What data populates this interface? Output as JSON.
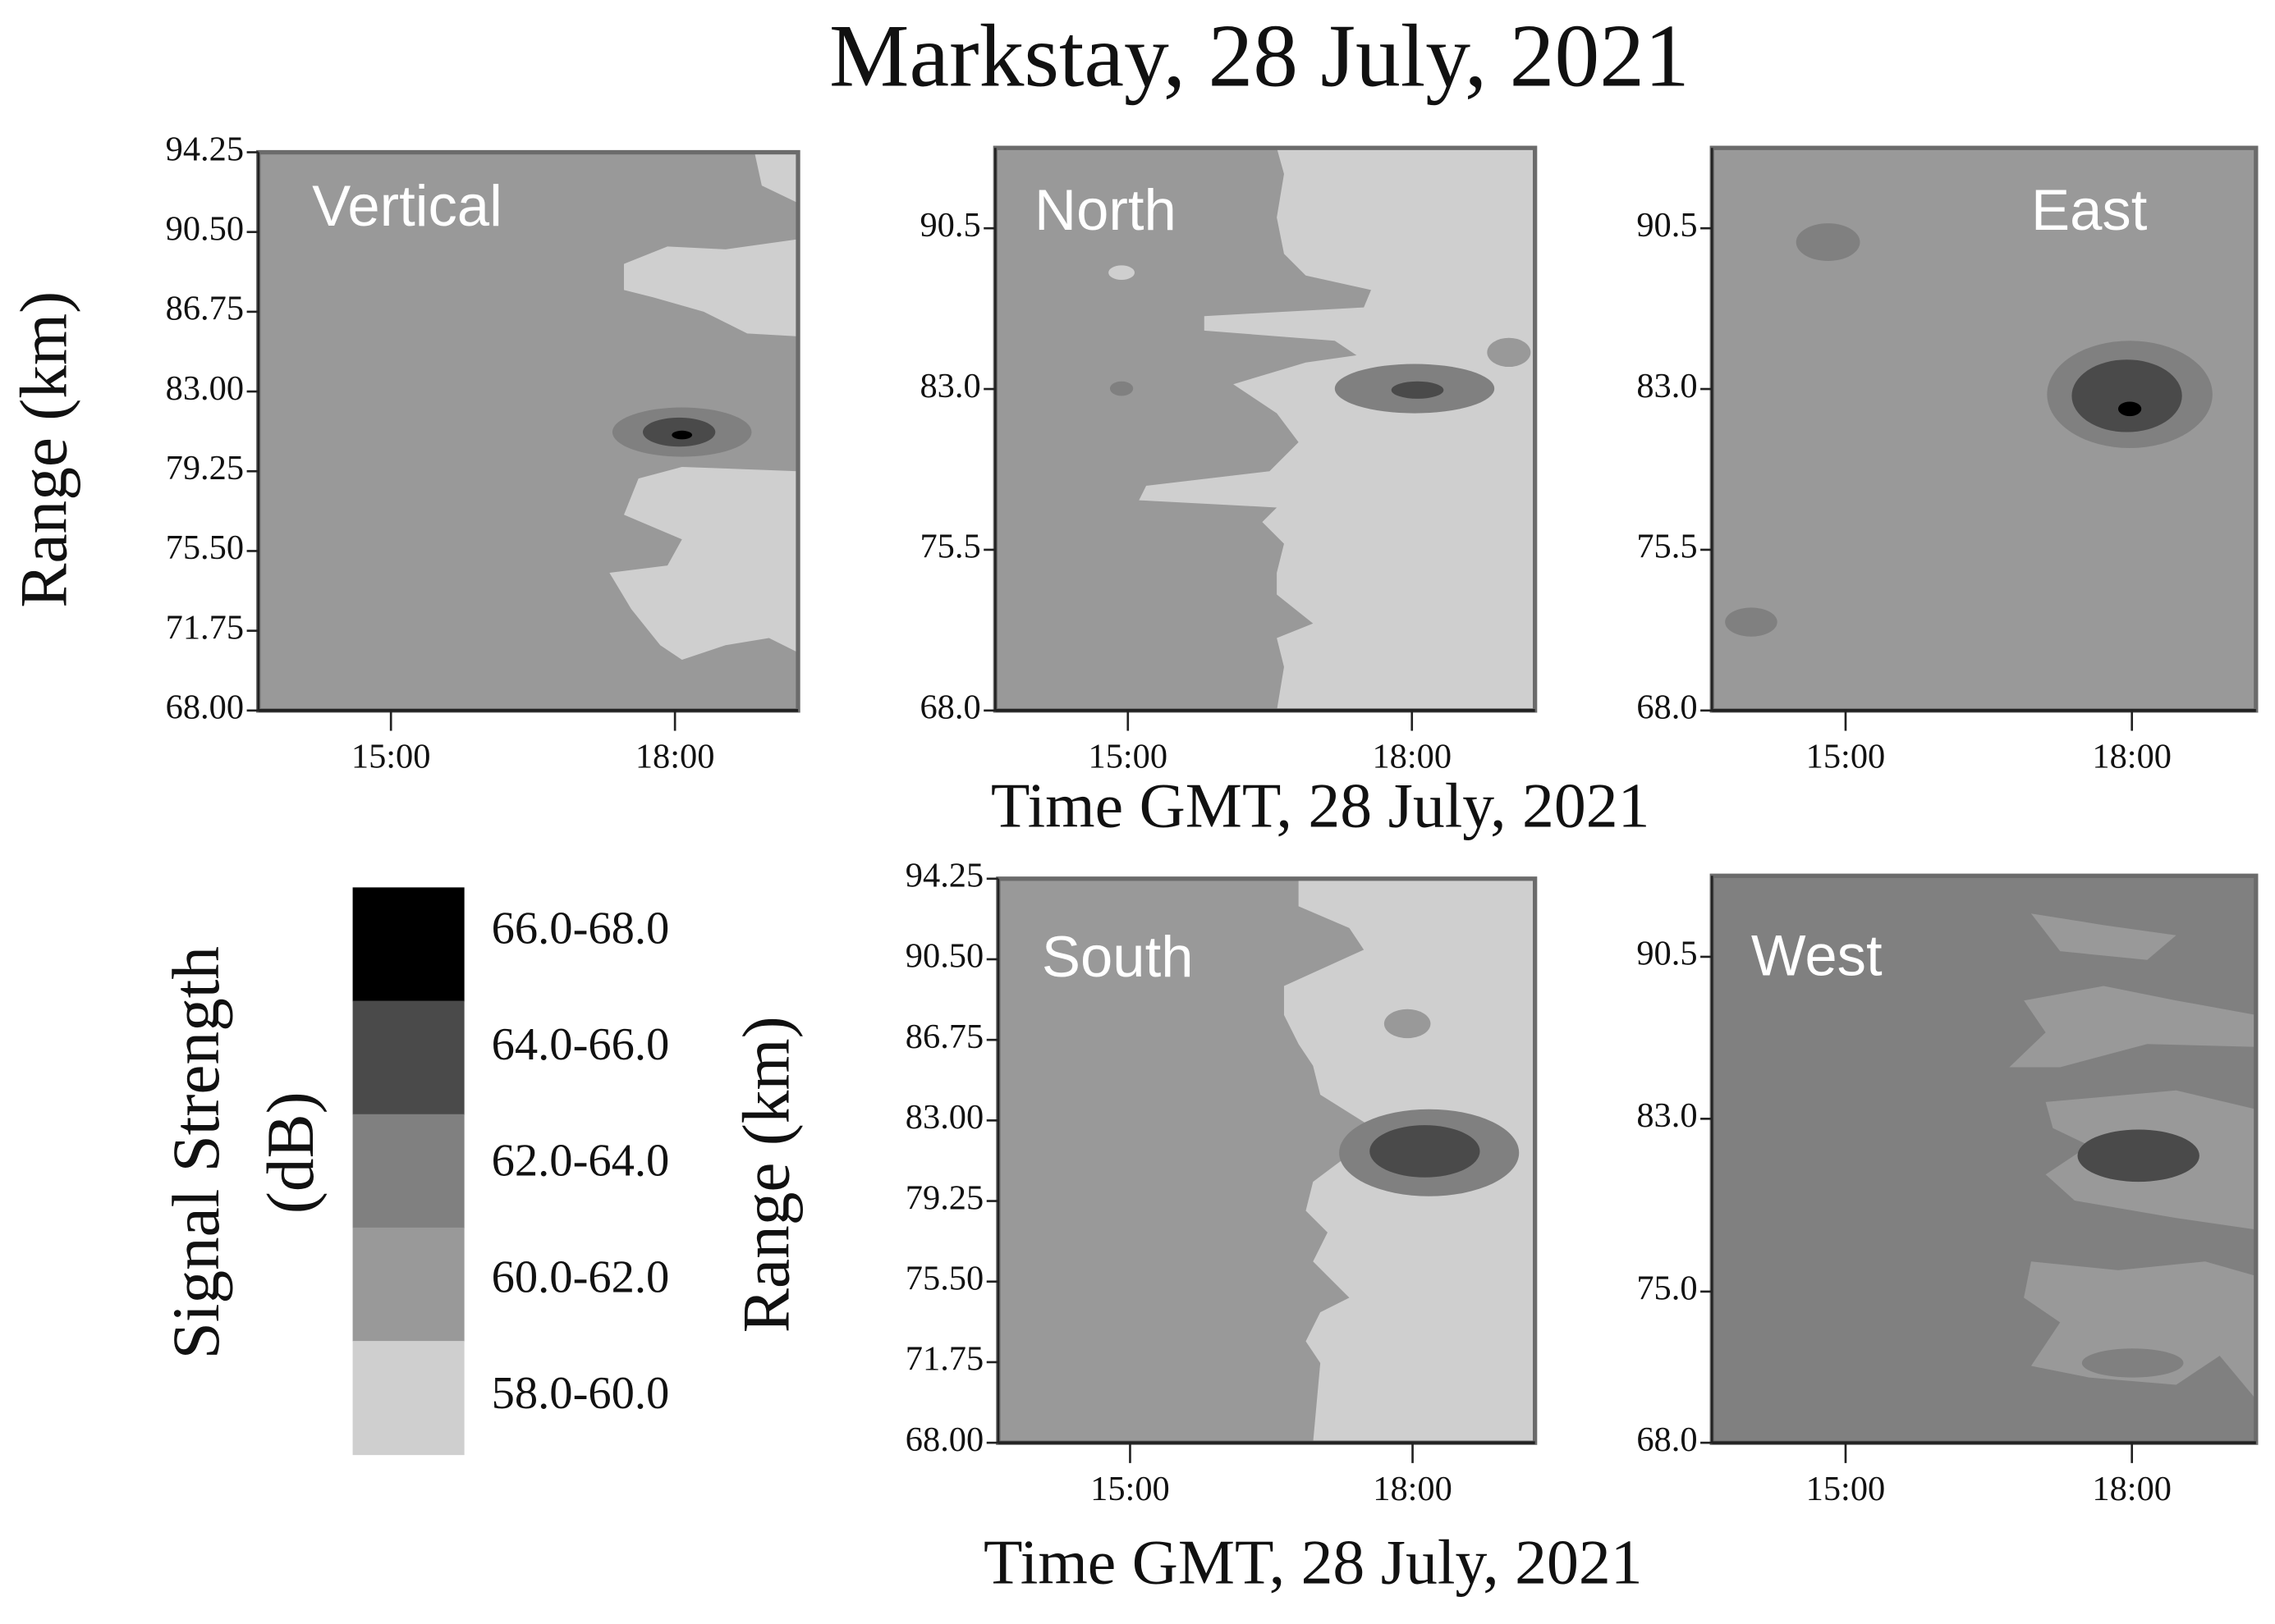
{
  "title": "Markstay, 28 July, 2021",
  "legend": {
    "title": [
      "Signal Strength",
      "(dB)"
    ],
    "entries": [
      {
        "label": "66.0-68.0",
        "color": "#000000"
      },
      {
        "label": "64.0-66.0",
        "color": "#4a4a4a"
      },
      {
        "label": "62.0-64.0",
        "color": "#808080"
      },
      {
        "label": "60.0-62.0",
        "color": "#999999"
      },
      {
        "label": "58.0-60.0",
        "color": "#cfcfcf"
      }
    ]
  },
  "chart_data": [
    {
      "type": "contour",
      "title": "Vertical",
      "ylabel": "Range (km)",
      "ylim": [
        68,
        94.25
      ],
      "yticks": [
        {
          "value": 68,
          "label": "68.00"
        },
        71.75,
        {
          "value": 75.5,
          "label": "75.50"
        },
        79.25,
        {
          "value": 83,
          "label": "83.00"
        },
        86.75,
        {
          "value": 90.5,
          "label": "90.50"
        },
        94.25
      ],
      "xlim": [
        13.6,
        19.3
      ],
      "xticks": [
        {
          "value": 15,
          "label": "15:00"
        },
        {
          "value": 18,
          "label": "18:00"
        }
      ]
    },
    {
      "type": "contour",
      "title": "North",
      "xlabel": "Time GMT, 28 July, 2021",
      "ylim": [
        68,
        94.25
      ],
      "yticks": [
        {
          "value": 68,
          "label": "68.0"
        },
        75.5,
        {
          "value": 83,
          "label": "83.0"
        },
        90.5
      ],
      "xlim": [
        13.6,
        19.3
      ],
      "xticks": [
        {
          "value": 15,
          "label": "15:00"
        },
        {
          "value": 18,
          "label": "18:00"
        }
      ]
    },
    {
      "type": "contour",
      "title": "East",
      "ylim": [
        68,
        94.25
      ],
      "yticks": [
        {
          "value": 68,
          "label": "68.0"
        },
        75.5,
        {
          "value": 83,
          "label": "83.0"
        },
        90.5
      ],
      "xlim": [
        13.6,
        19.3
      ],
      "xticks": [
        {
          "value": 15,
          "label": "15:00"
        },
        {
          "value": 18,
          "label": "18:00"
        }
      ]
    },
    {
      "type": "contour",
      "title": "South",
      "ylabel": "Range (km)",
      "xlabel": "Time GMT, 28 July, 2021",
      "ylim": [
        68,
        94.25
      ],
      "yticks": [
        {
          "value": 68,
          "label": "68.00"
        },
        71.75,
        {
          "value": 75.5,
          "label": "75.50"
        },
        79.25,
        {
          "value": 83,
          "label": "83.00"
        },
        86.75,
        {
          "value": 90.5,
          "label": "90.50"
        },
        94.25
      ],
      "xlim": [
        13.6,
        19.3
      ],
      "xticks": [
        {
          "value": 15,
          "label": "15:00"
        },
        {
          "value": 18,
          "label": "18:00"
        }
      ]
    },
    {
      "type": "contour",
      "title": "West",
      "ylim": [
        68,
        94.25
      ],
      "yticks": [
        {
          "value": 68,
          "label": "68.0"
        },
        {
          "value": 75,
          "label": "75.0"
        },
        {
          "value": 83,
          "label": "83.0"
        },
        90.5
      ],
      "xlim": [
        13.6,
        19.3
      ],
      "xticks": [
        {
          "value": 15,
          "label": "15:00"
        },
        {
          "value": 18,
          "label": "18:00"
        }
      ]
    }
  ]
}
